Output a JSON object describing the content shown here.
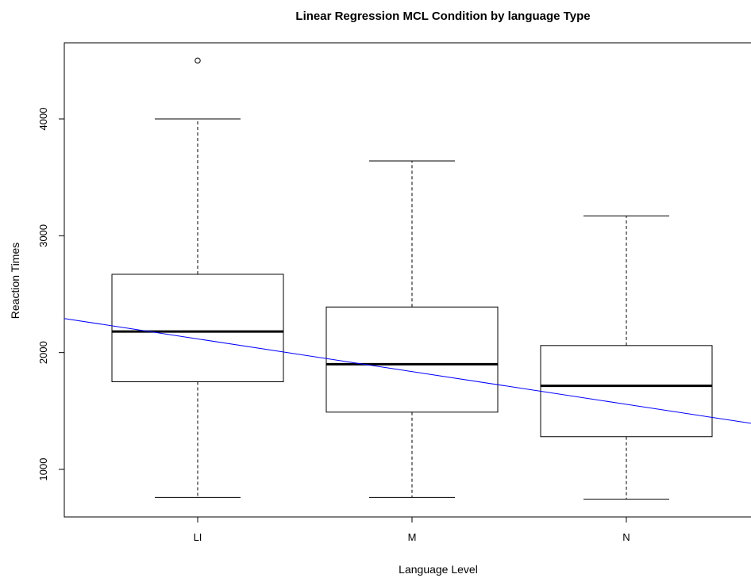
{
  "chart_data": {
    "type": "box",
    "title": "Linear Regression MCL Condition by language Type",
    "xlabel": "Language Level",
    "ylabel": "Reaction Times",
    "categories": [
      "LI",
      "M",
      "N"
    ],
    "yticks": [
      1000,
      2000,
      3000,
      4000
    ],
    "ylim": [
      600,
      4650
    ],
    "boxes": [
      {
        "category": "LI",
        "whisker_low": 760,
        "q1": 1750,
        "median": 2180,
        "q3": 2670,
        "whisker_high": 4000,
        "outliers": [
          4500
        ]
      },
      {
        "category": "M",
        "whisker_low": 760,
        "q1": 1490,
        "median": 1900,
        "q3": 2390,
        "whisker_high": 3640,
        "outliers": []
      },
      {
        "category": "N",
        "whisker_low": 745,
        "q1": 1280,
        "median": 1715,
        "q3": 2060,
        "whisker_high": 3170,
        "outliers": []
      }
    ],
    "regression_line": {
      "color": "#0000ff",
      "intercept": 2397,
      "slope": -280
    },
    "box_color": "#000000",
    "grid": false
  }
}
